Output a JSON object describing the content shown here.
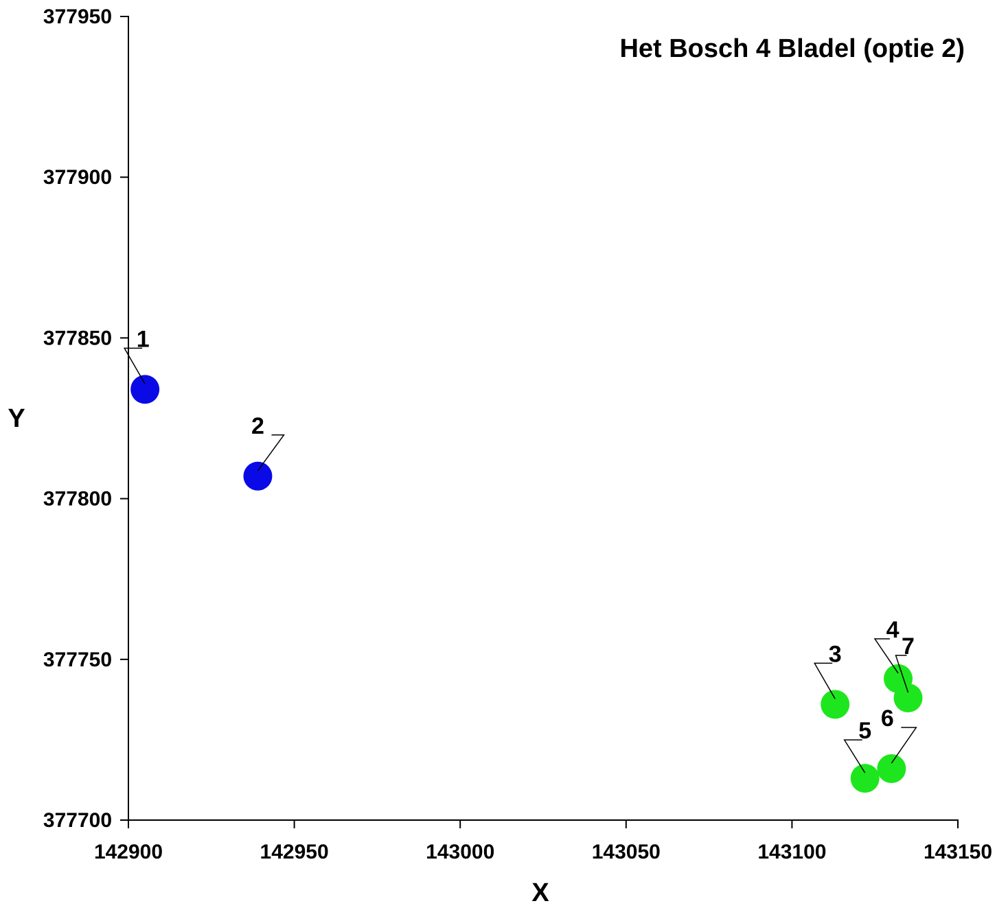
{
  "chart_data": {
    "type": "scatter",
    "title": "Het Bosch 4 Bladel (optie 2)",
    "xlabel": "X",
    "ylabel": "Y",
    "xlim": [
      142900,
      143150
    ],
    "ylim": [
      377700,
      377950
    ],
    "xticks": [
      142900,
      142950,
      143000,
      143050,
      143100,
      143150
    ],
    "yticks": [
      377700,
      377750,
      377800,
      377850,
      377900,
      377950
    ],
    "grid": false,
    "colors": {
      "blue": "#0a0ae6",
      "green": "#1ee61e"
    },
    "points": [
      {
        "label": "1",
        "x": 142905,
        "y": 377834,
        "color": "blue"
      },
      {
        "label": "2",
        "x": 142939,
        "y": 377807,
        "color": "blue"
      },
      {
        "label": "3",
        "x": 143113,
        "y": 377736,
        "color": "green"
      },
      {
        "label": "4",
        "x": 143132,
        "y": 377744,
        "color": "green"
      },
      {
        "label": "5",
        "x": 143122,
        "y": 377713,
        "color": "green"
      },
      {
        "label": "6",
        "x": 143130,
        "y": 377716,
        "color": "green"
      },
      {
        "label": "7",
        "x": 143135,
        "y": 377738,
        "color": "green"
      }
    ]
  }
}
